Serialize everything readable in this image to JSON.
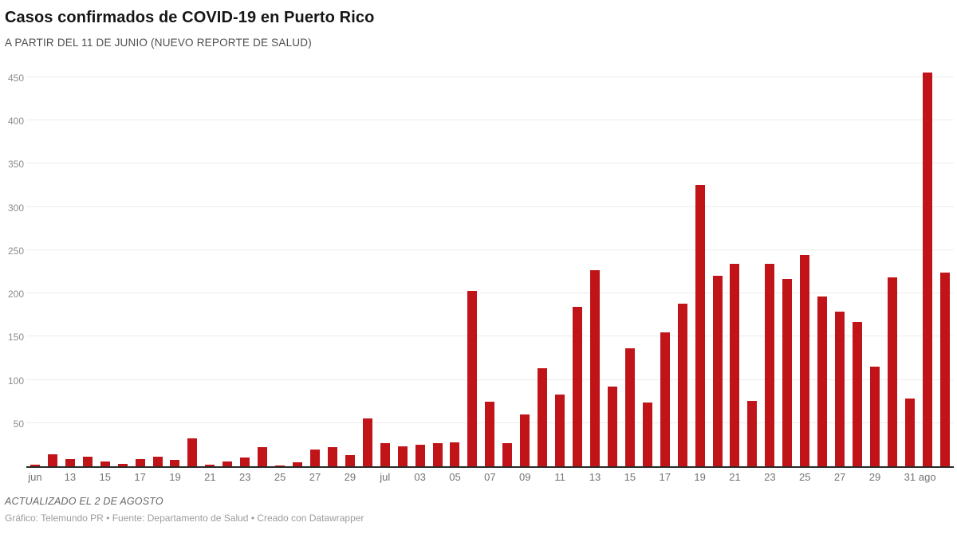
{
  "header": {
    "title": "Casos confirmados de COVID-19 en Puerto Rico",
    "subtitle": "A PARTIR DEL 11 DE JUNIO (NUEVO REPORTE DE SALUD)"
  },
  "footer": {
    "updated_note": "ACTUALIZADO EL 2 DE AGOSTO",
    "credits": "Gráfico: Telemundo PR • Fuente: Departamento de Salud • Creado con Datawrapper"
  },
  "chart_data": {
    "type": "bar",
    "title": "Casos confirmados de COVID-19 en Puerto Rico",
    "subtitle": "A PARTIR DEL 11 DE JUNIO (NUEVO REPORTE DE SALUD)",
    "x_tick_labels": [
      "jun",
      "",
      "13",
      "",
      "15",
      "",
      "17",
      "",
      "19",
      "",
      "21",
      "",
      "23",
      "",
      "25",
      "",
      "27",
      "",
      "29",
      "",
      "jul",
      "",
      "03",
      "",
      "05",
      "",
      "07",
      "",
      "09",
      "",
      "11",
      "",
      "13",
      "",
      "15",
      "",
      "17",
      "",
      "19",
      "",
      "21",
      "",
      "23",
      "",
      "25",
      "",
      "27",
      "",
      "29",
      "",
      "31",
      "ago",
      ""
    ],
    "values": [
      2,
      14,
      8,
      11,
      6,
      3,
      8,
      11,
      7,
      32,
      2,
      6,
      10,
      22,
      1,
      5,
      19,
      22,
      13,
      55,
      27,
      23,
      25,
      27,
      28,
      203,
      75,
      27,
      60,
      113,
      83,
      184,
      227,
      92,
      136,
      74,
      155,
      188,
      325,
      220,
      234,
      76,
      234,
      217,
      244,
      196,
      179,
      167,
      115,
      218,
      78,
      455,
      224
    ],
    "y_ticks": [
      50,
      100,
      150,
      200,
      250,
      300,
      350,
      400,
      450
    ],
    "ylim": [
      0,
      460
    ],
    "xlabel": "",
    "ylabel": "",
    "grid": "horizontal",
    "legend": "none",
    "bar_color": "#c11419",
    "grid_color": "#ececec",
    "baseline_color": "#2a2a2a",
    "axis_label_color": "#8c8c8c"
  }
}
